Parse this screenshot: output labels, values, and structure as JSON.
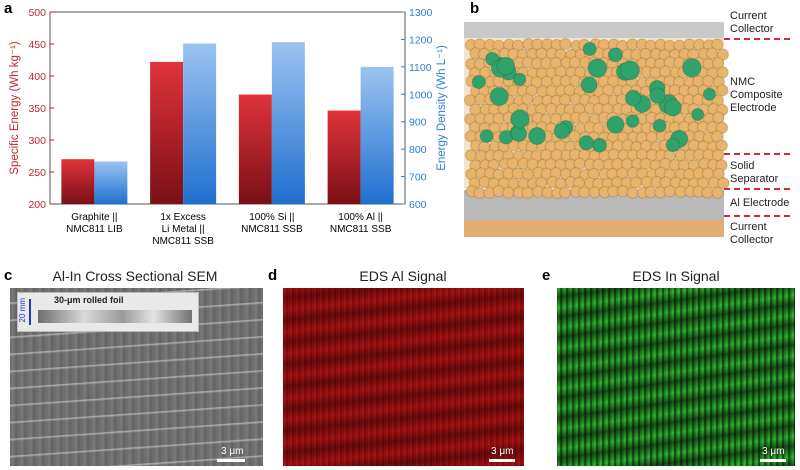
{
  "panels": {
    "a": {
      "label": "a"
    },
    "b": {
      "label": "b",
      "layers": [
        "Current Collector",
        "NMC Composite Electrode",
        "Solid Separator",
        "Al Electrode",
        "Current Collector"
      ],
      "colors": {
        "collector_top": "#c8c8c8",
        "particle_tan": "#e8b36a",
        "particle_green": "#2fa36b",
        "al": "#b8b8b8",
        "collector_bottom": "#e6b47a",
        "dash": "#d6283a"
      }
    },
    "c": {
      "label": "c",
      "title": "Al-In Cross Sectional SEM",
      "inset_label": "30-μm rolled foil",
      "inset_scale": "20 mm",
      "scale": "3 μm"
    },
    "d": {
      "label": "d",
      "title": "EDS Al Signal",
      "scale": "3 μm"
    },
    "e": {
      "label": "e",
      "title": "EDS In Signal",
      "scale": "3 μm"
    }
  },
  "chart_data": {
    "type": "bar",
    "categories": [
      [
        "Graphite ||",
        "NMC811 LIB"
      ],
      [
        "1x Excess",
        "Li Metal ||",
        "NMC811 SSB"
      ],
      [
        "100% Si ||",
        "NMC811 SSB"
      ],
      [
        "100% Al ||",
        "NMC811 SSB"
      ]
    ],
    "series": [
      {
        "name": "Specific Energy",
        "axis": "left",
        "values": [
          270,
          422,
          371,
          346
        ],
        "color": "#c0272d"
      },
      {
        "name": "Energy Density",
        "axis": "right",
        "values": [
          755,
          1185,
          1190,
          1100
        ],
        "color": "#2e7fd1"
      }
    ],
    "ylabel_left": "Specific Energy (Wh kg⁻¹)",
    "ylabel_right": "Energy Density (Wh L⁻¹)",
    "ylim_left": [
      200,
      500
    ],
    "ylim_right": [
      600,
      1300
    ],
    "yticks_left": [
      200,
      250,
      300,
      350,
      400,
      450,
      500
    ],
    "yticks_right": [
      600,
      700,
      800,
      900,
      1000,
      1100,
      1200,
      1300
    ],
    "grid": false
  }
}
